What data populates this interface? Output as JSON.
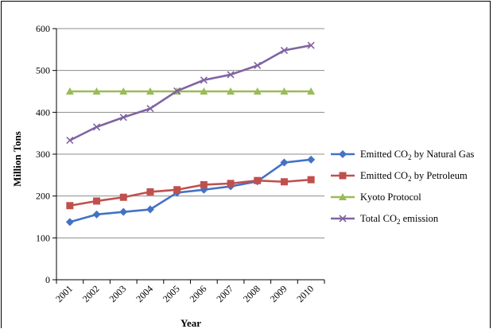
{
  "chart_data": {
    "type": "line",
    "title": "",
    "xlabel": "Year",
    "ylabel": "Million Tons",
    "x": [
      "2001",
      "2002",
      "2003",
      "2004",
      "2005",
      "2006",
      "2007",
      "2008",
      "2009",
      "2010"
    ],
    "ylim": [
      0,
      600
    ],
    "yticks": [
      "0",
      "100",
      "200",
      "300",
      "400",
      "500",
      "600"
    ],
    "grid": "horizontal",
    "legend_position": "right",
    "series": [
      {
        "key": "natural_gas",
        "name_parts": [
          "Emitted CO",
          "2",
          " by Natural Gas"
        ],
        "color": "#4472C4",
        "marker": "diamond",
        "values": [
          138,
          156,
          162,
          168,
          208,
          215,
          223,
          235,
          280,
          287
        ]
      },
      {
        "key": "petroleum",
        "name_parts": [
          "Emitted CO",
          "2",
          " by Petroleum"
        ],
        "color": "#C0504D",
        "marker": "square",
        "values": [
          177,
          188,
          197,
          210,
          215,
          227,
          230,
          237,
          234,
          239
        ]
      },
      {
        "key": "kyoto",
        "name_parts": [
          "Kyoto Protocol",
          "",
          ""
        ],
        "color": "#9BBB59",
        "marker": "triangle",
        "values": [
          450,
          450,
          450,
          450,
          450,
          450,
          450,
          450,
          450,
          450
        ]
      },
      {
        "key": "total",
        "name_parts": [
          "Total CO",
          "2",
          " emission"
        ],
        "color": "#8064A2",
        "marker": "x",
        "values": [
          333,
          365,
          388,
          409,
          451,
          477,
          490,
          512,
          548,
          560
        ]
      }
    ]
  }
}
